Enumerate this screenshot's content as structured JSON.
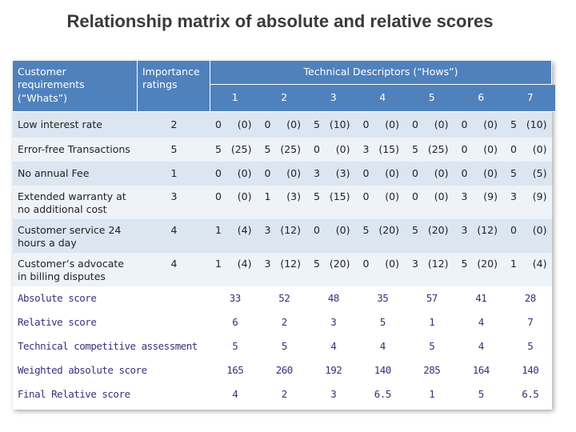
{
  "title": "Relationship matrix of absolute and relative scores",
  "header": {
    "requirements": "Customer requirements (“Whats”)",
    "importance": "Importance ratings",
    "descriptors": "Technical Descriptors (“Hows”)",
    "columns": [
      "1",
      "2",
      "3",
      "4",
      "5",
      "6",
      "7"
    ]
  },
  "rows": [
    {
      "label": "Low interest rate",
      "importance": "2",
      "cells": [
        [
          "0",
          "(0)"
        ],
        [
          "0",
          "(0)"
        ],
        [
          "5",
          "(10)"
        ],
        [
          "0",
          "(0)"
        ],
        [
          "0",
          "(0)"
        ],
        [
          "0",
          "(0)"
        ],
        [
          "5",
          "(10)"
        ]
      ]
    },
    {
      "label": "Error-free Transactions",
      "importance": "5",
      "cells": [
        [
          "5",
          "(25)"
        ],
        [
          "5",
          "(25)"
        ],
        [
          "0",
          "(0)"
        ],
        [
          "3",
          "(15)"
        ],
        [
          "5",
          "(25)"
        ],
        [
          "0",
          "(0)"
        ],
        [
          "0",
          "(0)"
        ]
      ]
    },
    {
      "label": "No annual Fee",
      "importance": "1",
      "cells": [
        [
          "0",
          "(0)"
        ],
        [
          "0",
          "(0)"
        ],
        [
          "3",
          "(3)"
        ],
        [
          "0",
          "(0)"
        ],
        [
          "0",
          "(0)"
        ],
        [
          "0",
          "(0)"
        ],
        [
          "5",
          "(5)"
        ]
      ]
    },
    {
      "label": "Extended warranty at no additional cost",
      "importance": "3",
      "cells": [
        [
          "0",
          "(0)"
        ],
        [
          "1",
          "(3)"
        ],
        [
          "5",
          "(15)"
        ],
        [
          "0",
          "(0)"
        ],
        [
          "0",
          "(0)"
        ],
        [
          "3",
          "(9)"
        ],
        [
          "3",
          "(9)"
        ]
      ]
    },
    {
      "label": "Customer service 24 hours a day",
      "importance": "4",
      "cells": [
        [
          "1",
          "(4)"
        ],
        [
          "3",
          "(12)"
        ],
        [
          "0",
          "(0)"
        ],
        [
          "5",
          "(20)"
        ],
        [
          "5",
          "(20)"
        ],
        [
          "3",
          "(12)"
        ],
        [
          "0",
          "(0)"
        ]
      ]
    },
    {
      "label": "Customer’s advocate in billing disputes",
      "importance": "4",
      "cells": [
        [
          "1",
          "(4)"
        ],
        [
          "3",
          "(12)"
        ],
        [
          "5",
          "(20)"
        ],
        [
          "0",
          "(0)"
        ],
        [
          "3",
          "(12)"
        ],
        [
          "5",
          "(20)"
        ],
        [
          "1",
          "(4)"
        ]
      ]
    }
  ],
  "summary": [
    {
      "label": "Absolute score",
      "values": [
        "33",
        "52",
        "48",
        "35",
        "57",
        "41",
        "28"
      ]
    },
    {
      "label": "Relative score",
      "values": [
        "6",
        "2",
        "3",
        "5",
        "1",
        "4",
        "7"
      ]
    },
    {
      "label": "Technical competitive assessment",
      "values": [
        "5",
        "5",
        "4",
        "4",
        "5",
        "4",
        "5"
      ]
    },
    {
      "label": "Weighted absolute score",
      "values": [
        "165",
        "260",
        "192",
        "140",
        "285",
        "164",
        "140"
      ]
    },
    {
      "label": "Final Relative score",
      "values": [
        "4",
        "2",
        "3",
        "6.5",
        "1",
        "5",
        "6.5"
      ]
    }
  ]
}
